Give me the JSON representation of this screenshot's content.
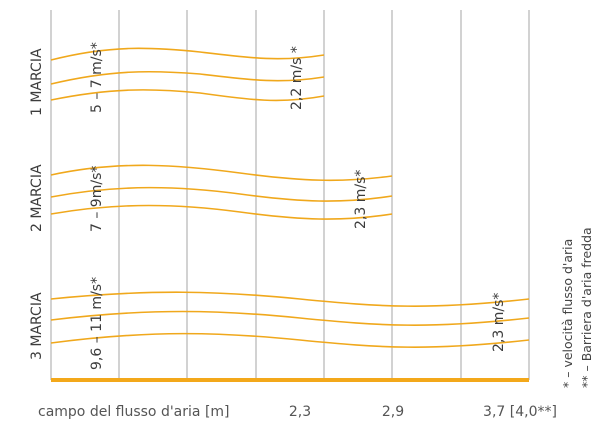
{
  "colors": {
    "curve": "#f0a81c",
    "baseline": "#f3a81a",
    "grid": "#b4b4b4",
    "text": "#3c3c3c"
  },
  "gears": [
    {
      "label": "1 MARCIA",
      "start_speed": "5 – 7 m/s*",
      "end_speed": "2,2 m/s *"
    },
    {
      "label": "2 MARCIA",
      "start_speed": "7 – 9m/s*",
      "end_speed": "2,3 m/s*"
    },
    {
      "label": "3 MARCIA",
      "start_speed": "9,6 – 11 m/s*",
      "end_speed": "2,3 m/s*"
    }
  ],
  "axis": {
    "title": "campo del flusso d'aria [m]",
    "ticks": [
      "2,3",
      "2,9",
      "3,7 [4,0**]"
    ]
  },
  "notes": [
    "* – velocità flusso d'aria",
    "** – Barriera d'aria fredda"
  ]
}
